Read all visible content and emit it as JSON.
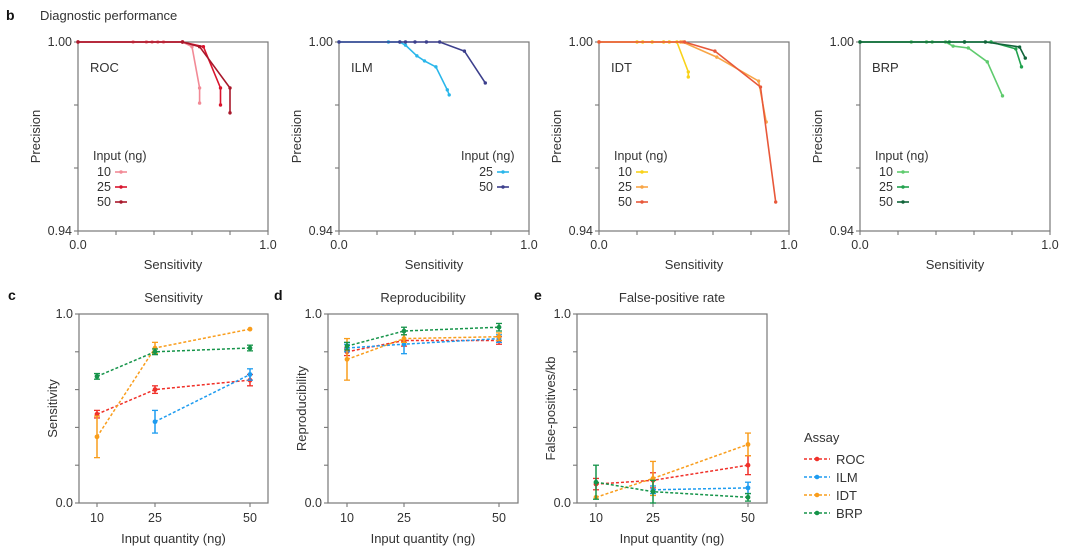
{
  "figure": {
    "panel_b_label": "b",
    "panel_b_title": "Diagnostic performance",
    "panel_c_label": "c",
    "panel_d_label": "d",
    "panel_e_label": "e",
    "assay_legend_title": "Assay"
  },
  "chart_data": [
    {
      "type": "line",
      "id": "roc",
      "assay_label": "ROC",
      "assay_color": "#e8283c",
      "xlabel": "Sensitivity",
      "ylabel": "Precision",
      "xlim": [
        0,
        1
      ],
      "ylim": [
        0.94,
        1.0
      ],
      "xticks": [
        "0.0",
        "1.0"
      ],
      "yticks": [
        "0.94",
        "1.00"
      ],
      "legend_title": "Input (ng)",
      "legend_position": "bottom-left",
      "series": [
        {
          "name": "10",
          "color": "#f28a96",
          "x": [
            0,
            0.29,
            0.36,
            0.39,
            0.42,
            0.45,
            0.55,
            0.6,
            0.64,
            0.64
          ],
          "y": [
            1,
            1,
            1,
            1,
            1,
            1,
            1,
            0.9985,
            0.9854,
            0.9806
          ]
        },
        {
          "name": "25",
          "color": "#d9142d",
          "x": [
            0,
            0.55,
            0.66,
            0.75,
            0.75
          ],
          "y": [
            1,
            1,
            0.9985,
            0.9854,
            0.98
          ]
        },
        {
          "name": "50",
          "color": "#a8182b",
          "x": [
            0,
            0.55,
            0.64,
            0.8,
            0.8
          ],
          "y": [
            1,
            1,
            0.9985,
            0.9854,
            0.9775
          ]
        }
      ]
    },
    {
      "type": "line",
      "id": "ilm",
      "assay_label": "ILM",
      "assay_color": "#2a9ae0",
      "xlabel": "Sensitivity",
      "ylabel": "Precision",
      "xlim": [
        0,
        1
      ],
      "ylim": [
        0.94,
        1.0
      ],
      "xticks": [
        "0.0",
        "1.0"
      ],
      "yticks": [
        "0.94",
        "1.00"
      ],
      "legend_title": "Input (ng)",
      "legend_position": "bottom-right",
      "series": [
        {
          "name": "25",
          "color": "#29b6ea",
          "x": [
            0,
            0.26,
            0.32,
            0.35,
            0.41,
            0.45,
            0.51,
            0.57,
            0.58
          ],
          "y": [
            1,
            1,
            1,
            0.999,
            0.9956,
            0.994,
            0.9921,
            0.9848,
            0.9832
          ]
        },
        {
          "name": "50",
          "color": "#3c3f8c",
          "x": [
            0,
            0.32,
            0.35,
            0.4,
            0.46,
            0.53,
            0.66,
            0.77
          ],
          "y": [
            1,
            1,
            1,
            1,
            1,
            1,
            0.9971,
            0.987
          ]
        }
      ]
    },
    {
      "type": "line",
      "id": "idt",
      "assay_label": "IDT",
      "assay_color": "#f79a2e",
      "xlabel": "Sensitivity",
      "ylabel": "Precision",
      "xlim": [
        0,
        1
      ],
      "ylim": [
        0.94,
        1.0
      ],
      "xticks": [
        "0.0",
        "1.0"
      ],
      "yticks": [
        "0.94",
        "1.00"
      ],
      "legend_title": "Input (ng)",
      "legend_position": "bottom-left",
      "series": [
        {
          "name": "10",
          "color": "#f9d21a",
          "x": [
            0,
            0.2,
            0.23,
            0.28,
            0.34,
            0.37,
            0.41,
            0.47,
            0.47
          ],
          "y": [
            1,
            1,
            1,
            1,
            1,
            1,
            1,
            0.9905,
            0.9889
          ]
        },
        {
          "name": "25",
          "color": "#f8a546",
          "x": [
            0,
            0.43,
            0.44,
            0.62,
            0.84,
            0.88
          ],
          "y": [
            1,
            1,
            1,
            0.9952,
            0.9876,
            0.9746
          ]
        },
        {
          "name": "50",
          "color": "#e8583a",
          "x": [
            0,
            0.45,
            0.61,
            0.85,
            0.93
          ],
          "y": [
            1,
            1,
            0.9971,
            0.9857,
            0.9492
          ]
        }
      ]
    },
    {
      "type": "line",
      "id": "brp",
      "assay_label": "BRP",
      "assay_color": "#2eb35a",
      "xlabel": "Sensitivity",
      "ylabel": "Precision",
      "xlim": [
        0,
        1
      ],
      "ylim": [
        0.94,
        1.0
      ],
      "xticks": [
        "0.0",
        "1.0"
      ],
      "yticks": [
        "0.94",
        "1.00"
      ],
      "legend_title": "Input (ng)",
      "legend_position": "bottom-left",
      "series": [
        {
          "name": "10",
          "color": "#5fcb6e",
          "x": [
            0,
            0.27,
            0.35,
            0.38,
            0.45,
            0.49,
            0.57,
            0.67,
            0.75
          ],
          "y": [
            1,
            1,
            1,
            1,
            1,
            0.9987,
            0.9981,
            0.9937,
            0.9829
          ]
        },
        {
          "name": "25",
          "color": "#22a24e",
          "x": [
            0,
            0.47,
            0.55,
            0.69,
            0.82,
            0.85
          ],
          "y": [
            1,
            1,
            1,
            1,
            0.9978,
            0.9921
          ]
        },
        {
          "name": "50",
          "color": "#11643a",
          "x": [
            0,
            0.55,
            0.66,
            0.84,
            0.87
          ],
          "y": [
            1,
            1,
            1,
            0.9984,
            0.9949
          ]
        }
      ]
    },
    {
      "type": "line",
      "id": "sens",
      "title": "Sensitivity",
      "xlabel": "Input quantity (ng)",
      "ylabel": "Sensitivity",
      "x": [
        10,
        25,
        50
      ],
      "xticks": [
        "10",
        "25",
        "50"
      ],
      "ylim": [
        0,
        1
      ],
      "yticks": [
        "0.0",
        "1.0"
      ],
      "series": [
        {
          "name": "ROC",
          "color": "#f0312a",
          "y": [
            0.47,
            0.6,
            0.65
          ],
          "err": [
            0.02,
            0.02,
            0.03
          ]
        },
        {
          "name": "ILM",
          "color": "#1e9cf0",
          "y": [
            null,
            0.43,
            0.68
          ],
          "err": [
            null,
            0.06,
            0.03
          ]
        },
        {
          "name": "IDT",
          "color": "#f99d1c",
          "y": [
            0.35,
            0.82,
            0.92
          ],
          "err": [
            0.11,
            0.03,
            0.0
          ]
        },
        {
          "name": "BRP",
          "color": "#16944a",
          "y": [
            0.67,
            0.8,
            0.82
          ],
          "err": [
            0.015,
            0.015,
            0.015
          ]
        }
      ]
    },
    {
      "type": "line",
      "id": "repro",
      "title": "Reproducibility",
      "xlabel": "Input quantity (ng)",
      "ylabel": "Reproducibility",
      "x": [
        10,
        25,
        50
      ],
      "xticks": [
        "10",
        "25",
        "50"
      ],
      "ylim": [
        0,
        1
      ],
      "yticks": [
        "0.0",
        "1.0"
      ],
      "series": [
        {
          "name": "ROC",
          "color": "#f0312a",
          "y": [
            0.8,
            0.86,
            0.86
          ],
          "err": [
            0.02,
            0.03,
            0.02
          ]
        },
        {
          "name": "ILM",
          "color": "#1e9cf0",
          "y": [
            0.82,
            0.84,
            0.87
          ],
          "err": [
            0.02,
            0.05,
            0.02
          ]
        },
        {
          "name": "IDT",
          "color": "#f99d1c",
          "y": [
            0.76,
            0.87,
            0.88
          ],
          "err": [
            0.11,
            0.02,
            0.02
          ]
        },
        {
          "name": "BRP",
          "color": "#16944a",
          "y": [
            0.83,
            0.91,
            0.93
          ],
          "err": [
            0.02,
            0.02,
            0.02
          ]
        }
      ]
    },
    {
      "type": "line",
      "id": "fpr",
      "title": "False-positive rate",
      "xlabel": "Input quantity (ng)",
      "ylabel": "False-positives/kb",
      "x": [
        10,
        25,
        50
      ],
      "xticks": [
        "10",
        "25",
        "50"
      ],
      "ylim": [
        0,
        1
      ],
      "yticks": [
        "0.0",
        "1.0"
      ],
      "legend_title": "Assay",
      "legend_position": "right",
      "series": [
        {
          "name": "ROC",
          "color": "#f0312a",
          "y": [
            0.1,
            0.12,
            0.2
          ],
          "err": [
            0.03,
            0.04,
            0.05
          ]
        },
        {
          "name": "ILM",
          "color": "#1e9cf0",
          "y": [
            null,
            0.07,
            0.08
          ],
          "err": [
            null,
            0.02,
            0.03
          ]
        },
        {
          "name": "IDT",
          "color": "#f99d1c",
          "y": [
            0.03,
            0.13,
            0.31
          ],
          "err": [
            0.0,
            0.09,
            0.06
          ]
        },
        {
          "name": "BRP",
          "color": "#16944a",
          "y": [
            0.11,
            0.06,
            0.03
          ],
          "err": [
            0.09,
            0.06,
            0.02
          ]
        }
      ]
    }
  ]
}
